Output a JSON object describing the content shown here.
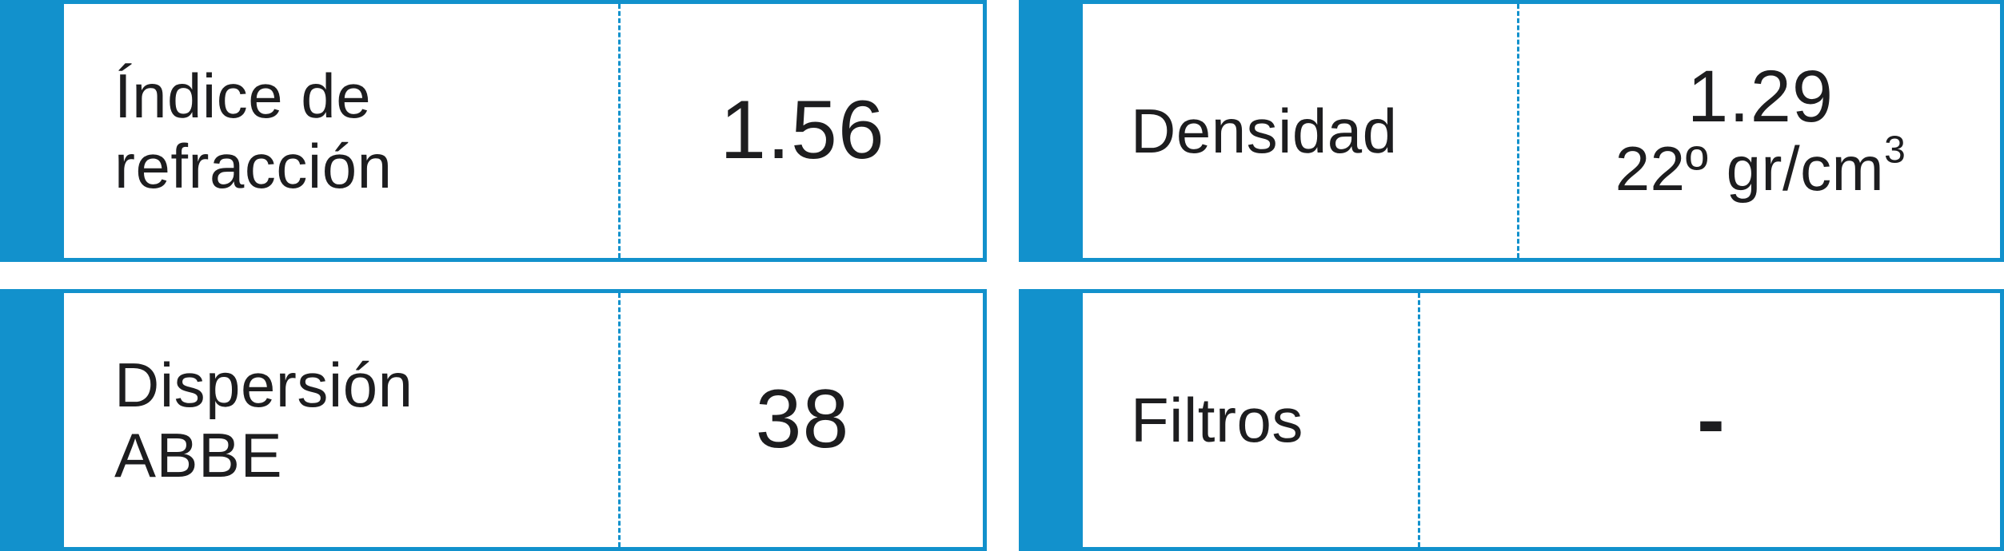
{
  "colors": {
    "accent": "#1291cc",
    "text": "#1d1d1f",
    "background": "#ffffff"
  },
  "specs": {
    "refraction": {
      "label_line1": "Índice de",
      "label_line2": "refracción",
      "value": "1.56"
    },
    "density": {
      "label": "Densidad",
      "value": "1.29",
      "unit_main": "22º gr/cm",
      "unit_exp": "3"
    },
    "dispersion": {
      "label_line1": "Dispersión",
      "label_line2": "ABBE",
      "value": "38"
    },
    "filters": {
      "label": "Filtros",
      "value": "-"
    }
  }
}
